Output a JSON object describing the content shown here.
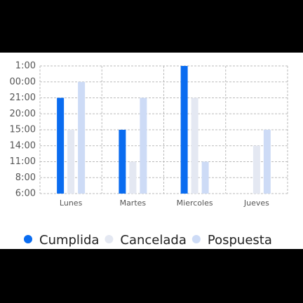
{
  "chart_data": {
    "type": "bar",
    "categories": [
      "Lunes",
      "Martes",
      "Miercoles",
      "Jueves"
    ],
    "series": [
      {
        "name": "Cumplida",
        "color": "#0a6cf0",
        "values": [
          6,
          4,
          8,
          null
        ]
      },
      {
        "name": "Cancelada",
        "color": "#e4e8f2",
        "values": [
          4,
          2,
          6,
          3
        ]
      },
      {
        "name": "Pospuesta",
        "color": "#cddbf6",
        "values": [
          7,
          6,
          2,
          4
        ]
      }
    ],
    "ylim": [
      0,
      8
    ],
    "yticks": [
      {
        "value": 0,
        "label": "6:00"
      },
      {
        "value": 1,
        "label": "8:00"
      },
      {
        "value": 2,
        "label": "11:00"
      },
      {
        "value": 3,
        "label": "14:00"
      },
      {
        "value": 4,
        "label": "15:00"
      },
      {
        "value": 5,
        "label": "20:00"
      },
      {
        "value": 6,
        "label": "21:00"
      },
      {
        "value": 7,
        "label": "00:00"
      },
      {
        "value": 8,
        "label": "1:00"
      }
    ],
    "grid": true,
    "legend": "bottom"
  }
}
